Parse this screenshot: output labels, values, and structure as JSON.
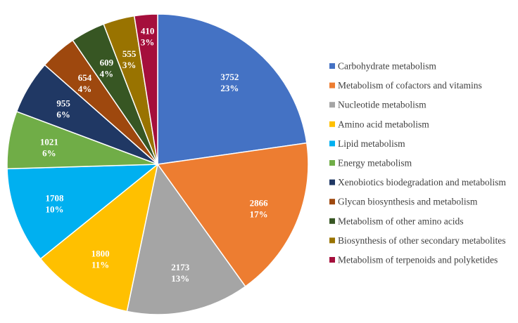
{
  "chart_data": {
    "type": "pie",
    "start_angle_deg": 90,
    "direction": "clockwise",
    "legend_position": "right",
    "slices": [
      {
        "label": "Carbohydrate metabolism",
        "value": 3752,
        "percent_label": "23%",
        "color": "#4472C4"
      },
      {
        "label": "Metabolism of cofactors and vitamins",
        "value": 2866,
        "percent_label": "17%",
        "color": "#ED7D31"
      },
      {
        "label": "Nucleotide metabolism",
        "value": 2173,
        "percent_label": "13%",
        "color": "#A5A5A5"
      },
      {
        "label": "Amino acid metabolism",
        "value": 1800,
        "percent_label": "11%",
        "color": "#FFC000"
      },
      {
        "label": "Lipid metabolism",
        "value": 1708,
        "percent_label": "10%",
        "color": "#00B0F0"
      },
      {
        "label": "Energy metabolism",
        "value": 1021,
        "percent_label": "6%",
        "color": "#70AD47"
      },
      {
        "label": "Xenobiotics biodegradation and metabolism",
        "value": 955,
        "percent_label": "6%",
        "color": "#203864"
      },
      {
        "label": "Glycan biosynthesis and metabolism",
        "value": 654,
        "percent_label": "4%",
        "color": "#9E480E"
      },
      {
        "label": "Metabolism of other amino acids",
        "value": 609,
        "percent_label": "4%",
        "color": "#375623"
      },
      {
        "label": "Biosynthesis of other secondary metabolites",
        "value": 555,
        "percent_label": "3%",
        "color": "#997300"
      },
      {
        "label": "Metabolism of terpenoids and polyketides",
        "value": 410,
        "percent_label": "3%",
        "color": "#A50F3C"
      }
    ]
  }
}
